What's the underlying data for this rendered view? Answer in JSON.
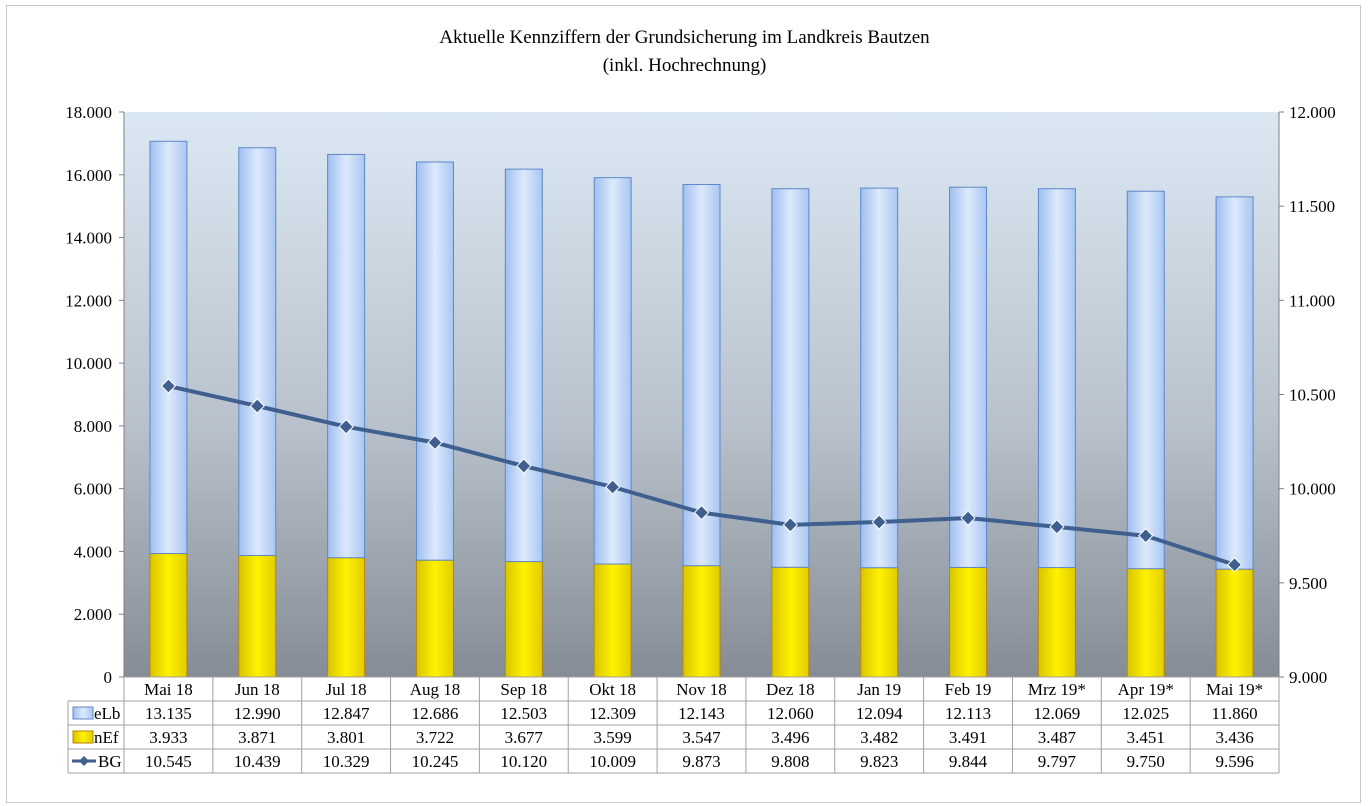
{
  "chart_data": {
    "type": "bar",
    "title": "Aktuelle Kennziffern der Grundsicherung im Landkreis Bautzen",
    "subtitle": "(inkl. Hochrechnung)",
    "categories": [
      "Mai 18",
      "Jun 18",
      "Jul 18",
      "Aug 18",
      "Sep 18",
      "Okt 18",
      "Nov 18",
      "Dez 18",
      "Jan 19",
      "Feb 19",
      "Mrz 19*",
      "Apr 19*",
      "Mai 19*"
    ],
    "stacked": true,
    "y_left": {
      "min": 0,
      "max": 18000,
      "step": 2000,
      "tick_labels": [
        "0",
        "2.000",
        "4.000",
        "6.000",
        "8.000",
        "10.000",
        "12.000",
        "14.000",
        "16.000",
        "18.000"
      ]
    },
    "y_right": {
      "min": 9000,
      "max": 12000,
      "step": 500,
      "tick_labels": [
        "9.000",
        "9.500",
        "10.000",
        "10.500",
        "11.000",
        "11.500",
        "12.000"
      ]
    },
    "series": [
      {
        "name": "eLb",
        "kind": "bar",
        "axis": "left",
        "color": "#aecbf3",
        "values": [
          13135,
          12990,
          12847,
          12686,
          12503,
          12309,
          12143,
          12060,
          12094,
          12113,
          12069,
          12025,
          11860
        ],
        "labels": [
          "13.135",
          "12.990",
          "12.847",
          "12.686",
          "12.503",
          "12.309",
          "12.143",
          "12.060",
          "12.094",
          "12.113",
          "12.069",
          "12.025",
          "11.860"
        ]
      },
      {
        "name": "nEf",
        "kind": "bar",
        "axis": "left",
        "color": "#f0e000",
        "values": [
          3933,
          3871,
          3801,
          3722,
          3677,
          3599,
          3547,
          3496,
          3482,
          3491,
          3487,
          3451,
          3436
        ],
        "labels": [
          "3.933",
          "3.871",
          "3.801",
          "3.722",
          "3.677",
          "3.599",
          "3.547",
          "3.496",
          "3.482",
          "3.491",
          "3.487",
          "3.451",
          "3.436"
        ]
      },
      {
        "name": "BG",
        "kind": "line",
        "axis": "right",
        "color": "#3f5f8f",
        "values": [
          10545,
          10439,
          10329,
          10245,
          10120,
          10009,
          9873,
          9808,
          9823,
          9844,
          9797,
          9750,
          9596
        ],
        "labels": [
          "10.545",
          "10.439",
          "10.329",
          "10.245",
          "10.120",
          "10.009",
          "9.873",
          "9.808",
          "9.823",
          "9.844",
          "9.797",
          "9.750",
          "9.596"
        ]
      }
    ],
    "legend": "data-table"
  }
}
